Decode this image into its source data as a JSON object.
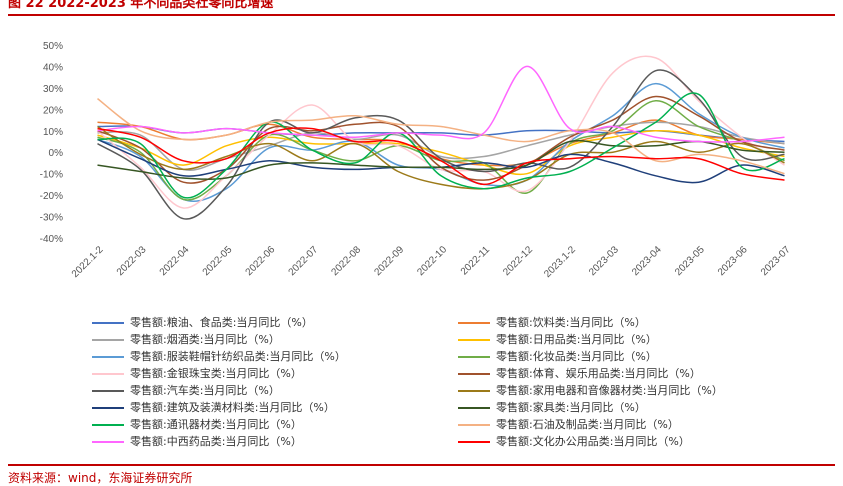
{
  "header": {
    "title": "图 22    2022-2023 年不同品类社零同比增速"
  },
  "footer": {
    "source": "资料来源：wind，东海证券研究所"
  },
  "chart_data": {
    "type": "line",
    "title": "2022-2023 年不同品类社零同比增速",
    "categories": [
      "2022.1-2",
      "2022-03",
      "2022-04",
      "2022-05",
      "2022-06",
      "2022-07",
      "2022-08",
      "2022-09",
      "2022-10",
      "2022-11",
      "2022-12",
      "2023.1-2",
      "2023-03",
      "2023-04",
      "2023-05",
      "2023-06",
      "2023-07"
    ],
    "y_tick_labels": [
      "50%",
      "40%",
      "30%",
      "20%",
      "10%",
      "0%",
      "-10%",
      "-20%",
      "-30%",
      "-40%"
    ],
    "ylim": [
      -40,
      50
    ],
    "xlabel": "",
    "ylabel": "",
    "series": [
      {
        "name": "零售额:粮油、食品类:当月同比（%）",
        "color": "#4472c4",
        "values": [
          12,
          12,
          9,
          11,
          9,
          8,
          9,
          9,
          9,
          8,
          10,
          10,
          9,
          10,
          8,
          6,
          5
        ]
      },
      {
        "name": "零售额:饮料类:当月同比（%）",
        "color": "#ed7d31",
        "values": [
          14,
          12,
          6,
          8,
          13,
          7,
          6,
          5,
          -3,
          -6,
          -5,
          4,
          9,
          15,
          8,
          6,
          4
        ]
      },
      {
        "name": "零售额:烟酒类:当月同比（%）",
        "color": "#a5a5a5",
        "values": [
          9,
          8,
          -8,
          -3,
          3,
          9,
          6,
          8,
          -2,
          -2,
          3,
          8,
          12,
          14,
          12,
          7,
          4
        ]
      },
      {
        "name": "零售额:日用品类:当月同比（%）",
        "color": "#ffc000",
        "values": [
          8,
          2,
          -6,
          3,
          7,
          4,
          4,
          4,
          0,
          -6,
          -10,
          3,
          7,
          10,
          8,
          2,
          -2
        ]
      },
      {
        "name": "零售额:服装鞋帽针纺织品类:当月同比（%）",
        "color": "#5b9bd5",
        "values": [
          6,
          -2,
          -22,
          -17,
          2,
          1,
          5,
          -6,
          -8,
          -15,
          -13,
          5,
          17,
          32,
          18,
          7,
          2
        ]
      },
      {
        "name": "零售额:化妆品类:当月同比（%）",
        "color": "#70ad47",
        "values": [
          7,
          0,
          -22,
          -11,
          8,
          1,
          -4,
          3,
          -4,
          -5,
          -19,
          4,
          10,
          24,
          12,
          5,
          -4
        ]
      },
      {
        "name": "零售额:金银珠宝类:当月同比（%）",
        "color": "#ffc7ce",
        "values": [
          10,
          -7,
          -26,
          -11,
          8,
          22,
          5,
          3,
          -8,
          -9,
          -18,
          5,
          37,
          44,
          24,
          7,
          -6
        ]
      },
      {
        "name": "零售额:体育、娱乐用品类:当月同比（%）",
        "color": "#a0522d",
        "values": [
          10,
          2,
          -14,
          -8,
          11,
          10,
          13,
          12,
          -7,
          -13,
          -6,
          7,
          15,
          26,
          17,
          5,
          1
        ]
      },
      {
        "name": "零售额:汽车类:当月同比（%）",
        "color": "#595959",
        "values": [
          4,
          -8,
          -31,
          -16,
          14,
          9,
          16,
          15,
          -3,
          -9,
          -5,
          -7,
          12,
          38,
          25,
          -2,
          -1
        ]
      },
      {
        "name": "零售额:家用电器和音像器材类:当月同比（%）",
        "color": "#9c7a19",
        "values": [
          12,
          -1,
          -8,
          -2,
          4,
          -4,
          4,
          -9,
          -15,
          -17,
          -13,
          -1,
          0,
          5,
          0,
          4,
          -5
        ]
      },
      {
        "name": "零售额:建筑及装潢材料类:当月同比（%）",
        "color": "#1f3f7a",
        "values": [
          6,
          -3,
          -11,
          -8,
          -4,
          -7,
          -8,
          -7,
          -7,
          -5,
          -7,
          -1,
          -5,
          -11,
          -14,
          -6,
          -11
        ]
      },
      {
        "name": "零售额:家具类:当月同比（%）",
        "color": "#375623",
        "values": [
          -6,
          -9,
          -12,
          -12,
          -6,
          -5,
          -6,
          -7,
          -7,
          -8,
          -6,
          5,
          3,
          3,
          5,
          1,
          0
        ]
      },
      {
        "name": "零售额:通讯器材类:当月同比（%）",
        "color": "#00b050",
        "values": [
          6,
          4,
          -21,
          -8,
          14,
          1,
          -5,
          9,
          -11,
          -17,
          -12,
          -9,
          2,
          14,
          27,
          -7,
          -3
        ]
      },
      {
        "name": "零售额:石油及制品类:当月同比（%）",
        "color": "#f4b183",
        "values": [
          25,
          10,
          6,
          8,
          14,
          15,
          17,
          13,
          12,
          8,
          5,
          10,
          9,
          -4,
          -1,
          -4,
          -10
        ]
      },
      {
        "name": "零售额:中西药品类:当月同比（%）",
        "color": "#ff66ff",
        "values": [
          10,
          12,
          9,
          11,
          9,
          8,
          7,
          9,
          8,
          9,
          40,
          11,
          12,
          7,
          5,
          5,
          7
        ]
      },
      {
        "name": "零售额:文化办公用品类:当月同比（%）",
        "color": "#ff0000",
        "values": [
          11,
          7,
          -4,
          -3,
          9,
          11,
          5,
          5,
          -4,
          -15,
          -5,
          -3,
          -2,
          -3,
          -3,
          -10,
          -13
        ]
      }
    ]
  }
}
